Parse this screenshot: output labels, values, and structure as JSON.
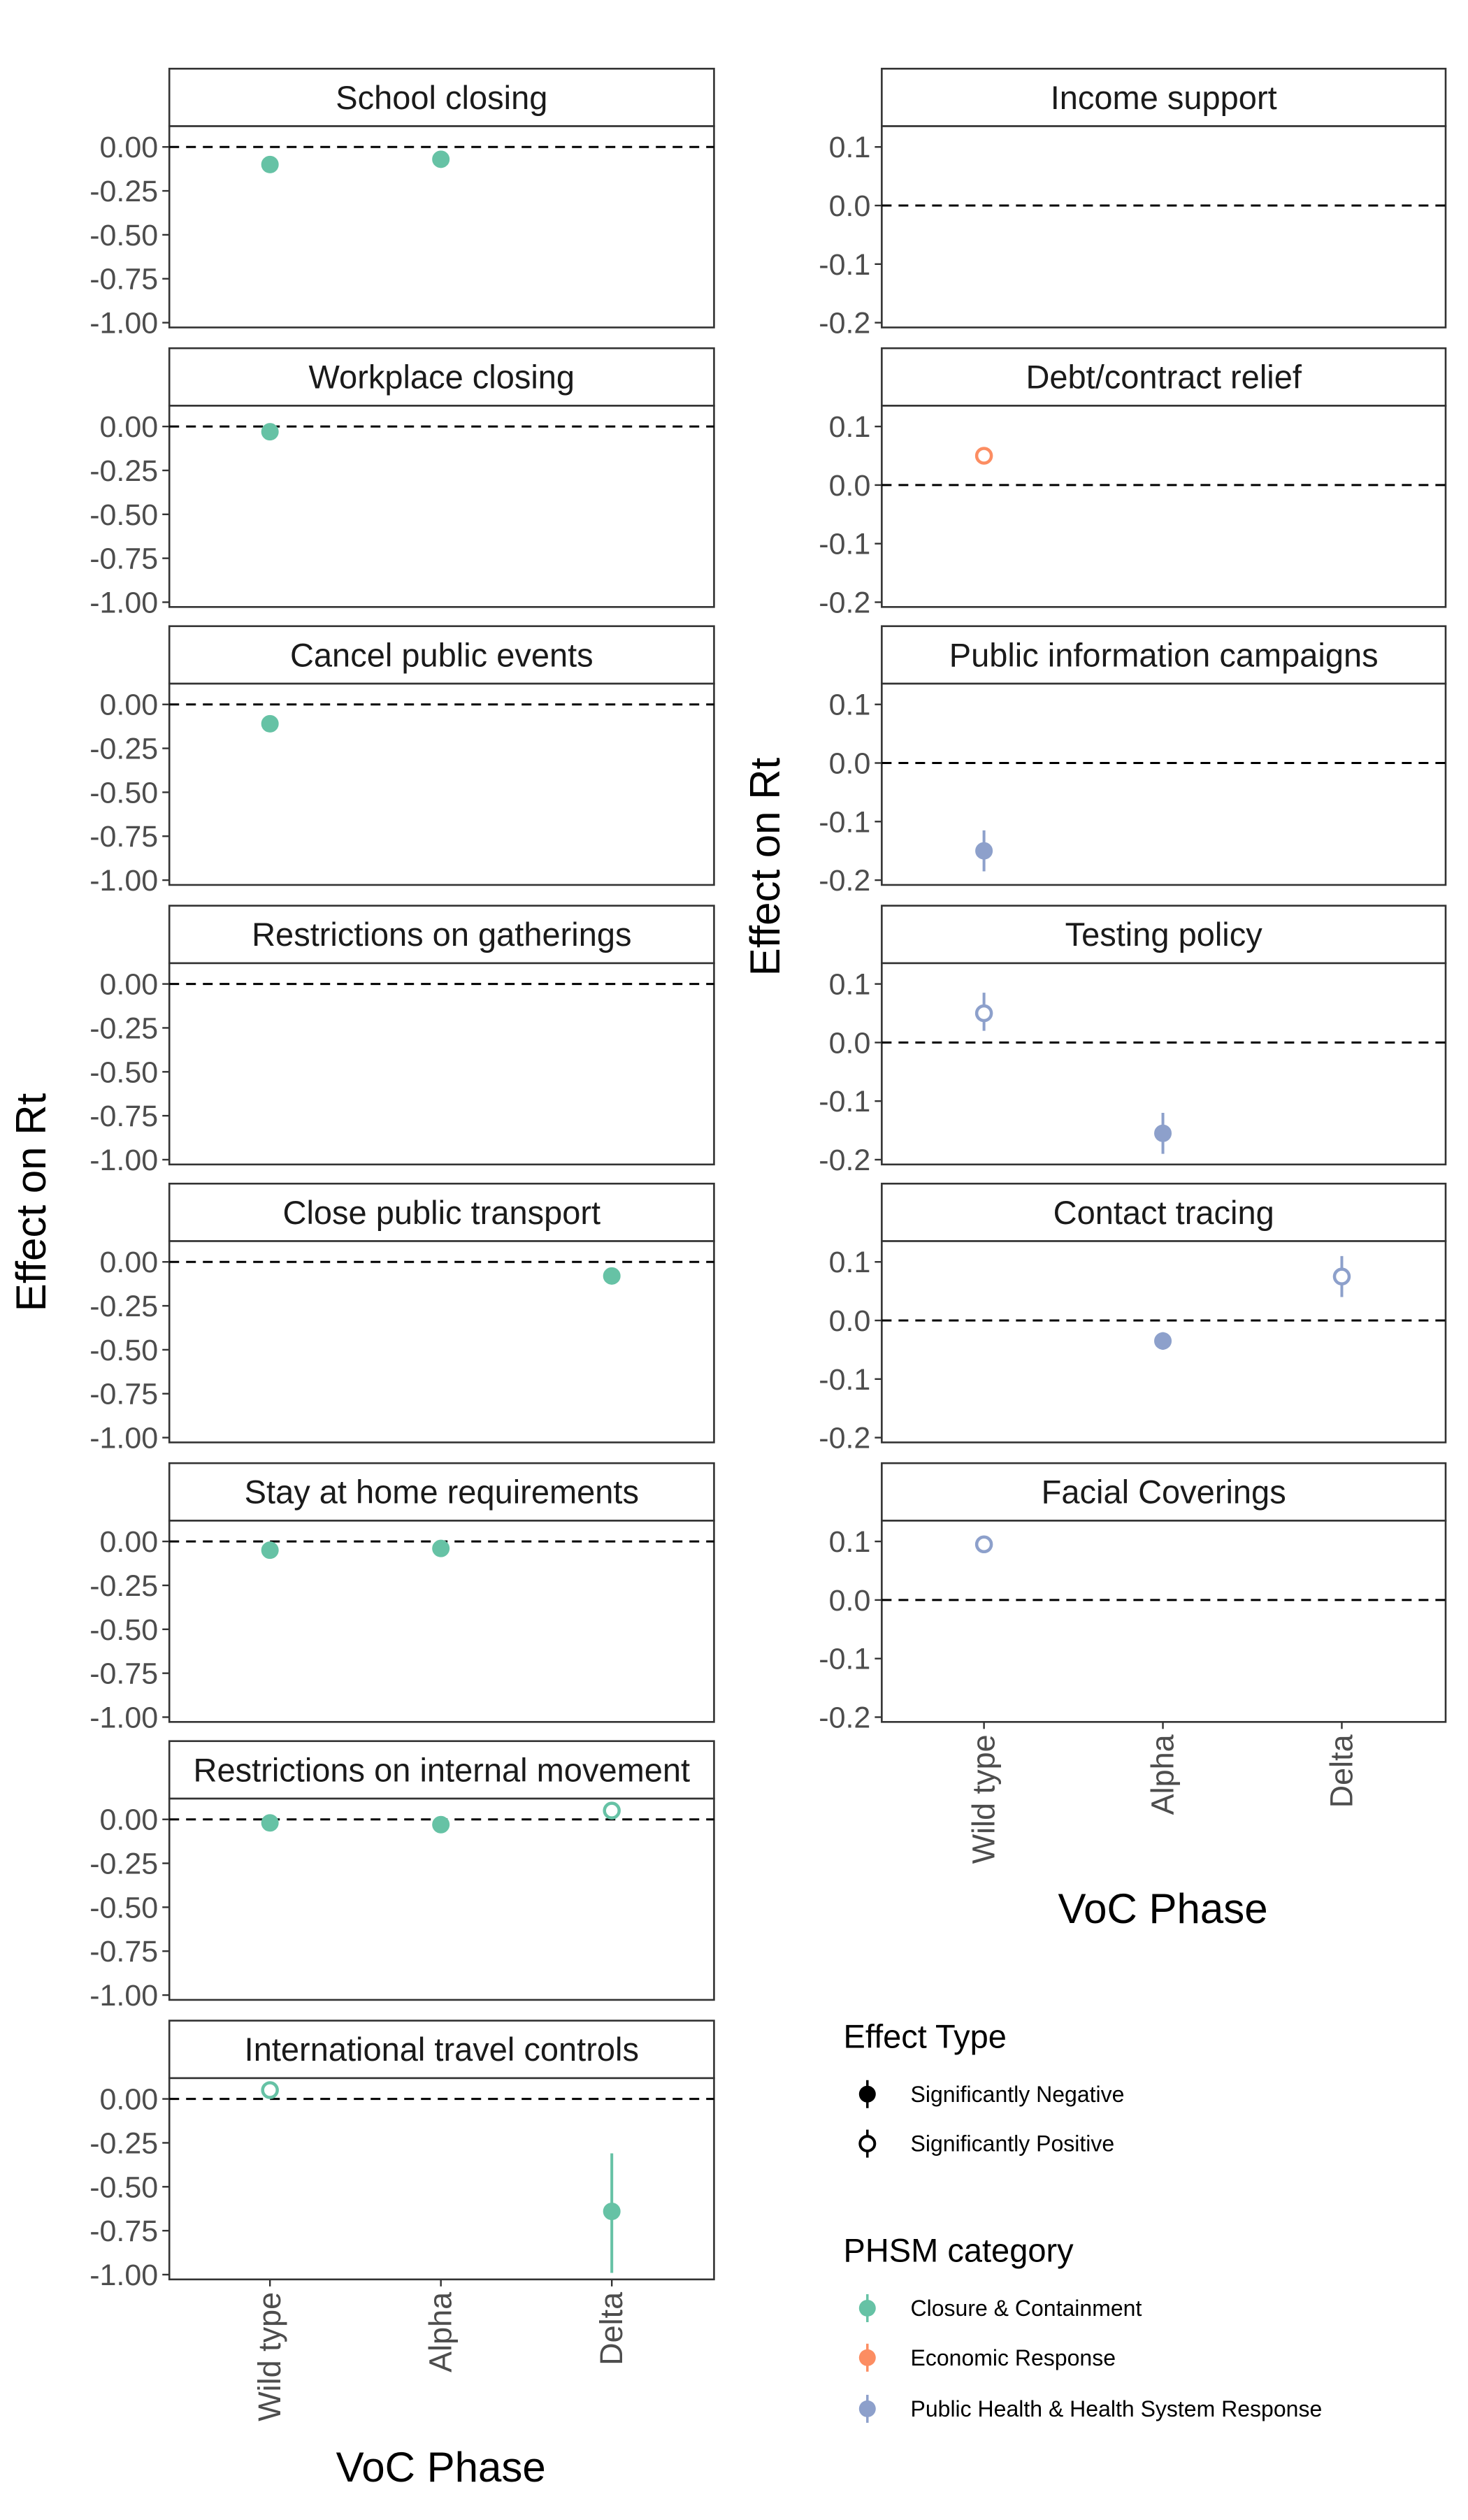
{
  "figure": {
    "left_ylabel": "Effect on Rt",
    "right_ylabel": "Effect on Rt",
    "left_xlabel": "VoC Phase",
    "right_xlabel": "VoC Phase"
  },
  "chart_data": {
    "type": "scatter",
    "x_categories": [
      "Wild type",
      "Alpha",
      "Delta"
    ],
    "grid": false,
    "reference_line": 0,
    "colors": {
      "Closure & Containment": "#66c2a5",
      "Economic Response": "#fc8d62",
      "Public Health & Health System Response": "#8da0cb"
    },
    "panels": [
      {
        "title": "School closing",
        "column": "left",
        "ylim": [
          -1.0,
          0.0
        ],
        "yticks": [
          "0.00",
          "-0.25",
          "-0.50",
          "-0.75",
          "-1.00"
        ],
        "yticks_num": [
          0,
          -0.25,
          -0.5,
          -0.75,
          -1.0
        ],
        "points": [
          {
            "x": "Wild type",
            "y": -0.1,
            "low": -0.11,
            "high": -0.09,
            "type": "Significantly Negative",
            "category": "Closure & Containment"
          },
          {
            "x": "Alpha",
            "y": -0.07,
            "low": -0.08,
            "high": -0.06,
            "type": "Significantly Negative",
            "category": "Closure & Containment"
          }
        ]
      },
      {
        "title": "Workplace closing",
        "column": "left",
        "ylim": [
          -1.0,
          0.0
        ],
        "yticks": [
          "0.00",
          "-0.25",
          "-0.50",
          "-0.75",
          "-1.00"
        ],
        "yticks_num": [
          0,
          -0.25,
          -0.5,
          -0.75,
          -1.0
        ],
        "points": [
          {
            "x": "Wild type",
            "y": -0.03,
            "low": -0.04,
            "high": -0.02,
            "type": "Significantly Negative",
            "category": "Closure & Containment"
          }
        ]
      },
      {
        "title": "Cancel public events",
        "column": "left",
        "ylim": [
          -1.0,
          0.0
        ],
        "yticks": [
          "0.00",
          "-0.25",
          "-0.50",
          "-0.75",
          "-1.00"
        ],
        "yticks_num": [
          0,
          -0.25,
          -0.5,
          -0.75,
          -1.0
        ],
        "points": [
          {
            "x": "Wild type",
            "y": -0.11,
            "low": -0.12,
            "high": -0.1,
            "type": "Significantly Negative",
            "category": "Closure & Containment"
          }
        ]
      },
      {
        "title": "Restrictions on gatherings",
        "column": "left",
        "ylim": [
          -1.0,
          0.0
        ],
        "yticks": [
          "0.00",
          "-0.25",
          "-0.50",
          "-0.75",
          "-1.00"
        ],
        "yticks_num": [
          0,
          -0.25,
          -0.5,
          -0.75,
          -1.0
        ],
        "points": []
      },
      {
        "title": "Close public transport",
        "column": "left",
        "ylim": [
          -1.0,
          0.0
        ],
        "yticks": [
          "0.00",
          "-0.25",
          "-0.50",
          "-0.75",
          "-1.00"
        ],
        "yticks_num": [
          0,
          -0.25,
          -0.5,
          -0.75,
          -1.0
        ],
        "points": [
          {
            "x": "Delta",
            "y": -0.08,
            "low": -0.09,
            "high": -0.07,
            "type": "Significantly Negative",
            "category": "Closure & Containment"
          }
        ]
      },
      {
        "title": "Stay at home requirements",
        "column": "left",
        "ylim": [
          -1.0,
          0.0
        ],
        "yticks": [
          "0.00",
          "-0.25",
          "-0.50",
          "-0.75",
          "-1.00"
        ],
        "yticks_num": [
          0,
          -0.25,
          -0.5,
          -0.75,
          -1.0
        ],
        "points": [
          {
            "x": "Wild type",
            "y": -0.05,
            "low": -0.06,
            "high": -0.04,
            "type": "Significantly Negative",
            "category": "Closure & Containment"
          },
          {
            "x": "Alpha",
            "y": -0.04,
            "low": -0.05,
            "high": -0.03,
            "type": "Significantly Negative",
            "category": "Closure & Containment"
          }
        ]
      },
      {
        "title": "Restrictions on internal movement",
        "column": "left",
        "ylim": [
          -1.0,
          0.0
        ],
        "yticks": [
          "0.00",
          "-0.25",
          "-0.50",
          "-0.75",
          "-1.00"
        ],
        "yticks_num": [
          0,
          -0.25,
          -0.5,
          -0.75,
          -1.0
        ],
        "points": [
          {
            "x": "Wild type",
            "y": -0.02,
            "low": -0.03,
            "high": -0.01,
            "type": "Significantly Negative",
            "category": "Closure & Containment"
          },
          {
            "x": "Alpha",
            "y": -0.03,
            "low": -0.04,
            "high": -0.02,
            "type": "Significantly Negative",
            "category": "Closure & Containment"
          },
          {
            "x": "Delta",
            "y": 0.05,
            "low": 0.04,
            "high": 0.06,
            "type": "Significantly Positive",
            "category": "Closure & Containment"
          }
        ]
      },
      {
        "title": "International travel controls",
        "column": "left",
        "ylim": [
          -1.0,
          0.0
        ],
        "yticks": [
          "0.00",
          "-0.25",
          "-0.50",
          "-0.75",
          "-1.00"
        ],
        "yticks_num": [
          0,
          -0.25,
          -0.5,
          -0.75,
          -1.0
        ],
        "points": [
          {
            "x": "Wild type",
            "y": 0.05,
            "low": 0.04,
            "high": 0.06,
            "type": "Significantly Positive",
            "category": "Closure & Containment"
          },
          {
            "x": "Delta",
            "y": -0.64,
            "low": -0.99,
            "high": -0.31,
            "type": "Significantly Negative",
            "category": "Closure & Containment"
          }
        ]
      },
      {
        "title": "Income support",
        "column": "right",
        "ylim": [
          -0.2,
          0.1
        ],
        "yticks": [
          "0.1",
          "0.0",
          "-0.1",
          "-0.2"
        ],
        "yticks_num": [
          0.1,
          0,
          -0.1,
          -0.2
        ],
        "points": []
      },
      {
        "title": "Debt/contract relief",
        "column": "right",
        "ylim": [
          -0.2,
          0.1
        ],
        "yticks": [
          "0.1",
          "0.0",
          "-0.1",
          "-0.2"
        ],
        "yticks_num": [
          0.1,
          0,
          -0.1,
          -0.2
        ],
        "points": [
          {
            "x": "Wild type",
            "y": 0.05,
            "low": 0.045,
            "high": 0.055,
            "type": "Significantly Positive",
            "category": "Economic Response"
          }
        ]
      },
      {
        "title": "Public information campaigns",
        "column": "right",
        "ylim": [
          -0.2,
          0.1
        ],
        "yticks": [
          "0.1",
          "0.0",
          "-0.1",
          "-0.2"
        ],
        "yticks_num": [
          0.1,
          0,
          -0.1,
          -0.2
        ],
        "points": [
          {
            "x": "Wild type",
            "y": -0.15,
            "low": -0.185,
            "high": -0.115,
            "type": "Significantly Negative",
            "category": "Public Health & Health System Response"
          }
        ]
      },
      {
        "title": "Testing policy",
        "column": "right",
        "ylim": [
          -0.2,
          0.1
        ],
        "yticks": [
          "0.1",
          "0.0",
          "-0.1",
          "-0.2"
        ],
        "yticks_num": [
          0.1,
          0,
          -0.1,
          -0.2
        ],
        "points": [
          {
            "x": "Wild type",
            "y": 0.05,
            "low": 0.02,
            "high": 0.085,
            "type": "Significantly Positive",
            "category": "Public Health & Health System Response"
          },
          {
            "x": "Alpha",
            "y": -0.155,
            "low": -0.19,
            "high": -0.12,
            "type": "Significantly Negative",
            "category": "Public Health & Health System Response"
          }
        ]
      },
      {
        "title": "Contact tracing",
        "column": "right",
        "ylim": [
          -0.2,
          0.1
        ],
        "yticks": [
          "0.1",
          "0.0",
          "-0.1",
          "-0.2"
        ],
        "yticks_num": [
          0.1,
          0,
          -0.1,
          -0.2
        ],
        "points": [
          {
            "x": "Alpha",
            "y": -0.035,
            "low": -0.05,
            "high": -0.02,
            "type": "Significantly Negative",
            "category": "Public Health & Health System Response"
          },
          {
            "x": "Delta",
            "y": 0.075,
            "low": 0.04,
            "high": 0.11,
            "type": "Significantly Positive",
            "category": "Public Health & Health System Response"
          }
        ]
      },
      {
        "title": "Facial Coverings",
        "column": "right",
        "ylim": [
          -0.2,
          0.1
        ],
        "yticks": [
          "0.1",
          "0.0",
          "-0.1",
          "-0.2"
        ],
        "yticks_num": [
          0.1,
          0,
          -0.1,
          -0.2
        ],
        "points": [
          {
            "x": "Wild type",
            "y": 0.095,
            "low": 0.085,
            "high": 0.105,
            "type": "Significantly Positive",
            "category": "Public Health & Health System Response"
          }
        ]
      }
    ],
    "legend": {
      "placement": "bottom-right",
      "effect_type": {
        "title": "Effect Type",
        "entries": [
          "Significantly Negative",
          "Significantly Positive"
        ]
      },
      "phsm_category": {
        "title": "PHSM category",
        "entries": [
          "Closure & Containment",
          "Economic Response",
          "Public Health & Health System Response"
        ]
      }
    }
  }
}
